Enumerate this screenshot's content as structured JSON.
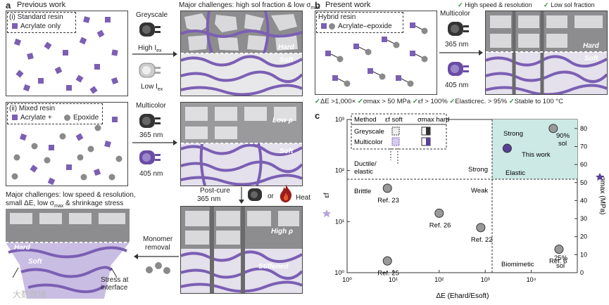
{
  "panel_a": {
    "letter": "a",
    "title": "Previous work",
    "standard_resin": {
      "label": "(i) Standard resin",
      "legend": "Acrylate only"
    },
    "mixed_resin": {
      "label": "(ii) Mixed resin",
      "legend_a": "Acrylate +",
      "legend_b": "Epoxide"
    },
    "greyscale": "Greyscale",
    "high_iex": "High I",
    "low_iex": "Low I",
    "iex_sub": "ex",
    "challenge_top": "Major challenges: high sol fraction & low σ",
    "challenge_top_sub": "max",
    "hard": "Hard",
    "soft": "Soft",
    "multicolor": "Multicolor",
    "nm365": "365 nm",
    "nm405": "405 nm",
    "low_rho": "Low ρ",
    "high_rho": "High ρ",
    "stiffened": "Stiffened",
    "post_cure": "Post-cure",
    "post_cure_nm": "365 nm",
    "or": "or",
    "heat": "Heat",
    "monomer_removal_1": "Monomer",
    "monomer_removal_2": "removal",
    "challenge_bottom_1": "Major challenges: low speed & resolution,",
    "challenge_bottom_2": "small ΔE, low σ",
    "challenge_bottom_2_sub": "max",
    "challenge_bottom_3": " & shrinkage stress",
    "stress_1": "Stress at",
    "stress_2": "interface"
  },
  "panel_b": {
    "letter": "b",
    "title": "Present work",
    "hybrid_label": "Hybrid resin",
    "hybrid_legend": "Acrylate–epoxide",
    "multicolor": "Multicolor",
    "nm365": "365 nm",
    "nm405": "405 nm",
    "hard": "Hard",
    "soft": "Soft",
    "feature_1": "High speed & resolution",
    "feature_2": "Low sol fraction",
    "checks": [
      "ΔE >1,000×",
      "σmax > 50 MPa",
      "εf > 100%",
      "Elasticrec. > 95%",
      "Stable to 100 °C"
    ]
  },
  "panel_c": {
    "letter": "c",
    "legend_header": [
      "Method",
      "εf soft",
      "σmax hard"
    ],
    "legend_rows": [
      "Greyscale",
      "Multicolor"
    ],
    "chart_data": {
      "type": "scatter",
      "xlabel": "ΔE (Ehard/Esoft)",
      "ylabel_left": "εf",
      "ylabel_right": "σmax (MPa)",
      "xscale": "log",
      "yscale_left": "log",
      "xlim": [
        1,
        100000
      ],
      "ylim_left": [
        1,
        1000
      ],
      "ylim_right": [
        0,
        85
      ],
      "x_ticks": [
        "10⁰",
        "10¹",
        "10²",
        "10³",
        "10⁴"
      ],
      "y_ticks_left": [
        "10⁰",
        "10¹",
        "10²",
        "10³"
      ],
      "y_ticks_right": [
        "0",
        "10",
        "20",
        "30",
        "40",
        "50",
        "60",
        "70",
        "80"
      ],
      "points": [
        {
          "label": "Ref. 23",
          "x": 7.5,
          "y_strain": 45
        },
        {
          "label": "Ref. 26",
          "x": 100,
          "y_stress": 33
        },
        {
          "label": "Ref. 22",
          "x": 800,
          "y_stress": 25
        },
        {
          "label": "Ref. 25",
          "x": 7.5,
          "y_strain": 1.7
        },
        {
          "label": "Ref. 6",
          "x": 40000,
          "y_stress": 13
        },
        {
          "label": "This work",
          "x": 3000,
          "y_stress": 69
        },
        {
          "label": "90% sol",
          "x": 30000,
          "y_stress": 80
        }
      ],
      "annotations": [
        "Ductile/",
        "elastic",
        "Brittle",
        "Strong",
        "Weak",
        "Strong",
        "Elastic",
        "This work",
        "Biomimetic",
        "90%",
        "sol",
        "25%",
        "sol"
      ]
    }
  },
  "watermark": "大数跨境",
  "colors": {
    "purple": "#7b5fb3",
    "light_purple": "#b7a6dc",
    "grey": "#8a8a8a",
    "teal_bg": "#cde9e6",
    "check_green": "#2e8b3e"
  }
}
